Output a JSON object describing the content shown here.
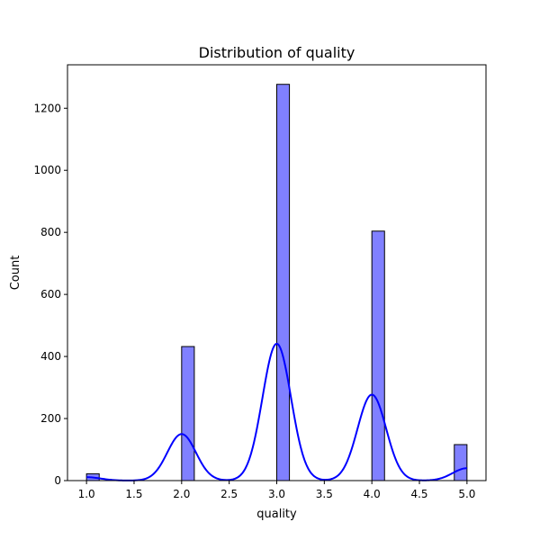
{
  "chart_data": {
    "type": "bar",
    "title": "Distribution of quality",
    "xlabel": "quality",
    "ylabel": "Count",
    "xlim": [
      0.8,
      5.2
    ],
    "ylim": [
      0,
      1340
    ],
    "grid": false,
    "legend": "none",
    "xticks": [
      1.0,
      1.5,
      2.0,
      2.5,
      3.0,
      3.5,
      4.0,
      4.5,
      5.0
    ],
    "xtick_labels": [
      "1.0",
      "1.5",
      "2.0",
      "2.5",
      "3.0",
      "3.5",
      "4.0",
      "4.5",
      "5.0"
    ],
    "yticks": [
      0,
      200,
      400,
      600,
      800,
      1000,
      1200
    ],
    "ytick_labels": [
      "0",
      "200",
      "400",
      "600",
      "800",
      "1000",
      "1200"
    ],
    "bin_width": 0.1333,
    "bars": [
      {
        "x_start": 1.0,
        "value": 22
      },
      {
        "x_start": 2.0,
        "value": 432
      },
      {
        "x_start": 3.0,
        "value": 1277
      },
      {
        "x_start": 4.0,
        "value": 804
      },
      {
        "x_start": 4.8667,
        "value": 116
      }
    ],
    "kde": {
      "peaks": [
        {
          "x": 1.0,
          "y": 11,
          "sigma": 0.15
        },
        {
          "x": 2.0,
          "y": 150,
          "sigma": 0.15
        },
        {
          "x": 3.0,
          "y": 441,
          "sigma": 0.15
        },
        {
          "x": 4.0,
          "y": 277,
          "sigma": 0.15
        },
        {
          "x": 5.0,
          "y": 40,
          "sigma": 0.15
        }
      ],
      "x_range": [
        1.0,
        5.0
      ]
    },
    "colors": {
      "bar_fill": "#8080ff",
      "bar_edge": "#000000",
      "kde_line": "#0000ff"
    }
  }
}
